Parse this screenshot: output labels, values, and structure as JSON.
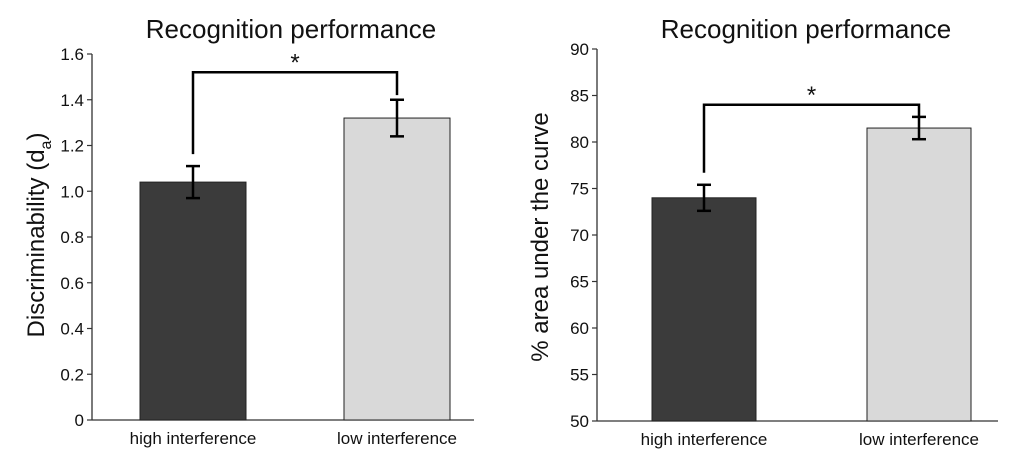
{
  "chart_data": [
    {
      "type": "bar",
      "title": "Recognition performance",
      "ylabel": "Discriminability (d",
      "ylabel_subscript": "a",
      "ylabel_close": ")",
      "xlabel": "",
      "categories": [
        "high interference",
        "low interference"
      ],
      "values": [
        1.04,
        1.32
      ],
      "errors": [
        0.07,
        0.08
      ],
      "bar_colors": [
        "#3b3b3b",
        "#d9d9d9"
      ],
      "ylim": [
        0,
        1.6
      ],
      "yticks": [
        "0",
        "0.2",
        "0.4",
        "0.6",
        "0.8",
        "1.0",
        "1.2",
        "1.4",
        "1.6"
      ],
      "grid": false,
      "annotation": "*"
    },
    {
      "type": "bar",
      "title": "Recognition performance",
      "ylabel": "% area under the curve",
      "xlabel": "",
      "categories": [
        "high interference",
        "low interference"
      ],
      "values": [
        74.0,
        81.5
      ],
      "errors": [
        1.4,
        1.2
      ],
      "bar_colors": [
        "#3b3b3b",
        "#d9d9d9"
      ],
      "ylim": [
        50,
        90
      ],
      "yticks": [
        "50",
        "55",
        "60",
        "65",
        "70",
        "75",
        "80",
        "85",
        "90"
      ],
      "grid": false,
      "annotation": "*"
    }
  ]
}
